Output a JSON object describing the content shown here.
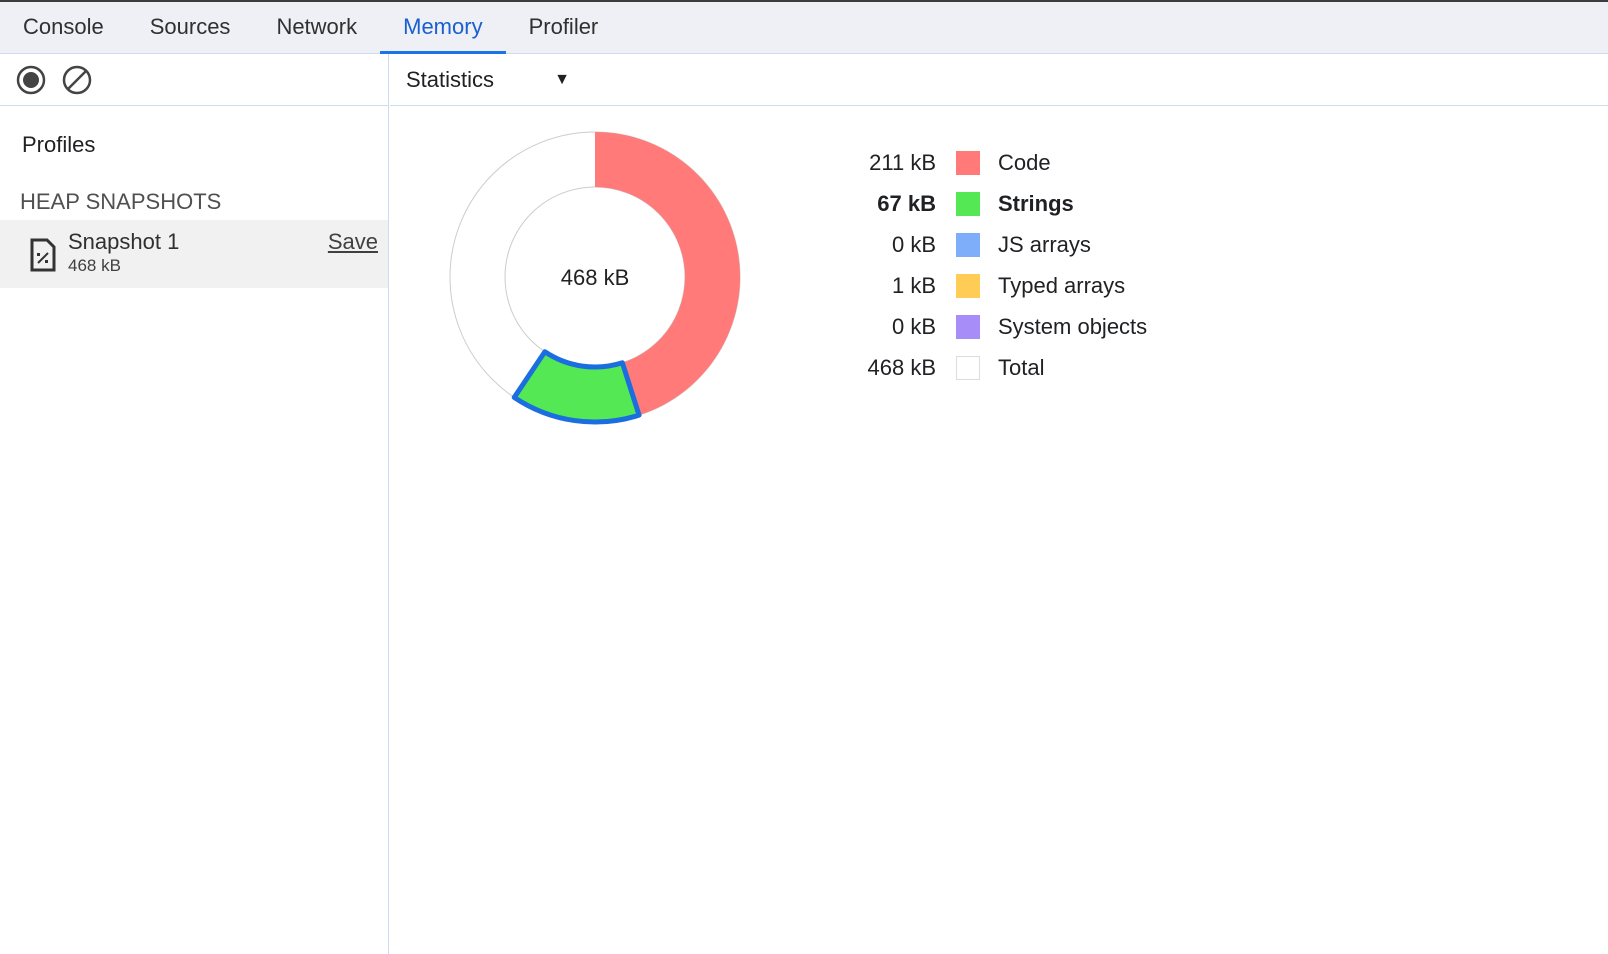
{
  "tabs": [
    {
      "label": "Console"
    },
    {
      "label": "Sources"
    },
    {
      "label": "Network"
    },
    {
      "label": "Memory",
      "active": true
    },
    {
      "label": "Profiler"
    }
  ],
  "toolbar": {
    "record_icon": "record-icon",
    "clear_icon": "clear-icon"
  },
  "sidebar": {
    "profiles_label": "Profiles",
    "section": "HEAP SNAPSHOTS",
    "snapshot": {
      "name": "Snapshot 1",
      "size": "468 kB",
      "save_label": "Save",
      "icon": "heap-snapshot-file-icon"
    }
  },
  "view_select": {
    "selected": "Statistics"
  },
  "chart_data": {
    "type": "pie",
    "center_label": "468 kB",
    "total": 468,
    "highlighted": "Strings",
    "legend": [
      {
        "value": "211 kB",
        "label": "Code",
        "kb": 211,
        "color": "#ff7a78"
      },
      {
        "value": "67 kB",
        "label": "Strings",
        "kb": 67,
        "color": "#55e855",
        "bold": true
      },
      {
        "value": "0 kB",
        "label": "JS arrays",
        "kb": 0,
        "color": "#7eadf9"
      },
      {
        "value": "1 kB",
        "label": "Typed arrays",
        "kb": 1,
        "color": "#ffcc55"
      },
      {
        "value": "0 kB",
        "label": "System objects",
        "kb": 0,
        "color": "#a78df7"
      },
      {
        "value": "468 kB",
        "label": "Total",
        "kb": 468,
        "color": "#ffffff"
      }
    ],
    "highlight_color": "#1a6ee0"
  }
}
